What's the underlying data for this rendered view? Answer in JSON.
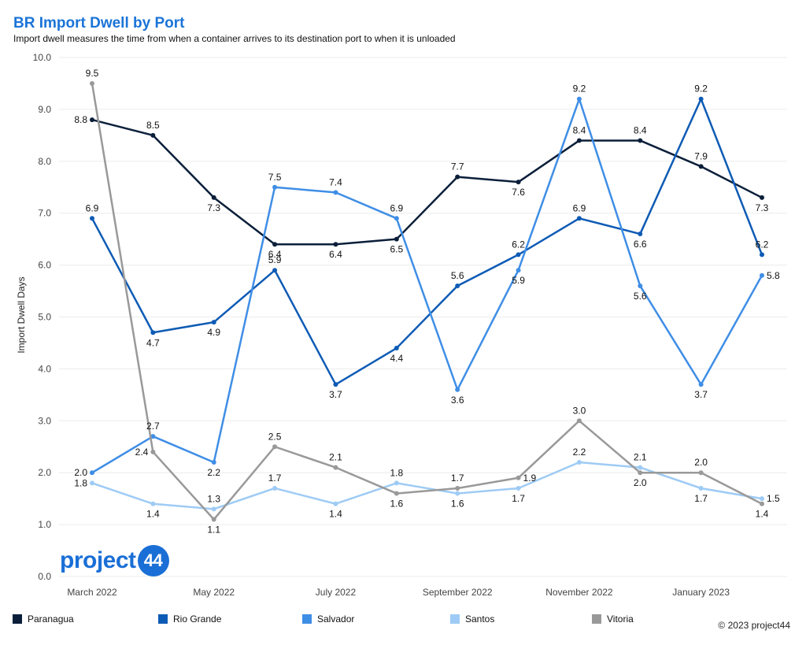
{
  "header": {
    "title": "BR Import Dwell by Port",
    "subtitle": "Import dwell measures the time from when a container arrives to its destination port to when it is unloaded"
  },
  "logo": {
    "text": "project",
    "badge": "44"
  },
  "copyright": "© 2023 project44",
  "chart_data": {
    "type": "line",
    "title": "BR Import Dwell by Port",
    "ylabel": "Import Dwell Days",
    "xlabel": "",
    "ylim": [
      0,
      10
    ],
    "yticks": [
      "0.0",
      "1.0",
      "2.0",
      "3.0",
      "4.0",
      "5.0",
      "6.0",
      "7.0",
      "8.0",
      "9.0",
      "10.0"
    ],
    "x": [
      "2022-03",
      "2022-04",
      "2022-05",
      "2022-06",
      "2022-07",
      "2022-08",
      "2022-09",
      "2022-10",
      "2022-11",
      "2022-12",
      "2023-01",
      "2023-02"
    ],
    "xtick_labels": [
      "March 2022",
      "May 2022",
      "July 2022",
      "September 2022",
      "November 2022",
      "January 2023"
    ],
    "xtick_index": [
      0,
      2,
      4,
      6,
      8,
      10
    ],
    "grid": "horizontal",
    "legend_position": "bottom",
    "series": [
      {
        "name": "Paranagua",
        "color": "#0b1f3a",
        "values": [
          8.8,
          8.5,
          7.3,
          6.4,
          6.4,
          6.5,
          7.7,
          7.6,
          8.4,
          8.4,
          7.9,
          7.3
        ],
        "labels": [
          "8.8",
          "8.5",
          "7.3",
          "6.4",
          "6.4",
          "6.5",
          "7.7",
          "7.6",
          "8.4",
          "8.4",
          "7.9",
          "7.3"
        ],
        "label_pos": [
          "left",
          "above",
          "below",
          "below",
          "below",
          "below",
          "above",
          "below",
          "above",
          "above",
          "above",
          "below"
        ]
      },
      {
        "name": "Rio Grande",
        "color": "#0e5bb5",
        "values": [
          6.9,
          4.7,
          4.9,
          5.9,
          3.7,
          4.4,
          5.6,
          6.2,
          6.9,
          6.6,
          9.2,
          6.2
        ],
        "labels": [
          "6.9",
          "4.7",
          "4.9",
          "5.9",
          "3.7",
          "4.4",
          "5.6",
          "6.2",
          "6.9",
          "6.6",
          "9.2",
          "6.2"
        ],
        "label_pos": [
          "above",
          "below",
          "below",
          "above",
          "below",
          "below",
          "above",
          "above",
          "above",
          "below",
          "above",
          "above"
        ]
      },
      {
        "name": "Salvador",
        "color": "#3f8ee6",
        "values": [
          2.0,
          2.7,
          2.2,
          7.5,
          7.4,
          6.9,
          3.6,
          5.9,
          9.2,
          5.6,
          3.7,
          5.8
        ],
        "labels": [
          "2.0",
          "2.7",
          "2.2",
          "7.5",
          "7.4",
          "6.9",
          "3.6",
          "5.9",
          "9.2",
          "5.6",
          "3.7",
          "5.8"
        ],
        "label_pos": [
          "left",
          "above",
          "below",
          "above",
          "above",
          "above",
          "below",
          "below",
          "above",
          "below",
          "below",
          "right"
        ]
      },
      {
        "name": "Santos",
        "color": "#9ecbf5",
        "values": [
          1.8,
          1.4,
          1.3,
          1.7,
          1.4,
          1.8,
          1.6,
          1.7,
          2.2,
          2.1,
          1.7,
          1.5
        ],
        "labels": [
          "1.8",
          "1.4",
          "1.3",
          "1.7",
          "1.4",
          "1.8",
          "1.6",
          "1.7",
          "2.2",
          "2.1",
          "1.7",
          "1.5"
        ],
        "label_pos": [
          "left",
          "below",
          "above",
          "above",
          "below",
          "above",
          "below",
          "below",
          "above",
          "above",
          "below",
          "right"
        ]
      },
      {
        "name": "Vitoria",
        "color": "#999999",
        "values": [
          9.5,
          2.4,
          1.1,
          2.5,
          2.1,
          1.6,
          1.7,
          1.9,
          3.0,
          2.0,
          2.0,
          1.4
        ],
        "labels": [
          "9.5",
          "2.4",
          "1.1",
          "2.5",
          "2.1",
          "1.6",
          "1.7",
          "1.9",
          "3.0",
          "2.0",
          "2.0",
          "1.4"
        ],
        "label_pos": [
          "above",
          "left",
          "below",
          "above",
          "above",
          "below",
          "above",
          "right",
          "above",
          "below",
          "above",
          "below"
        ]
      }
    ]
  }
}
